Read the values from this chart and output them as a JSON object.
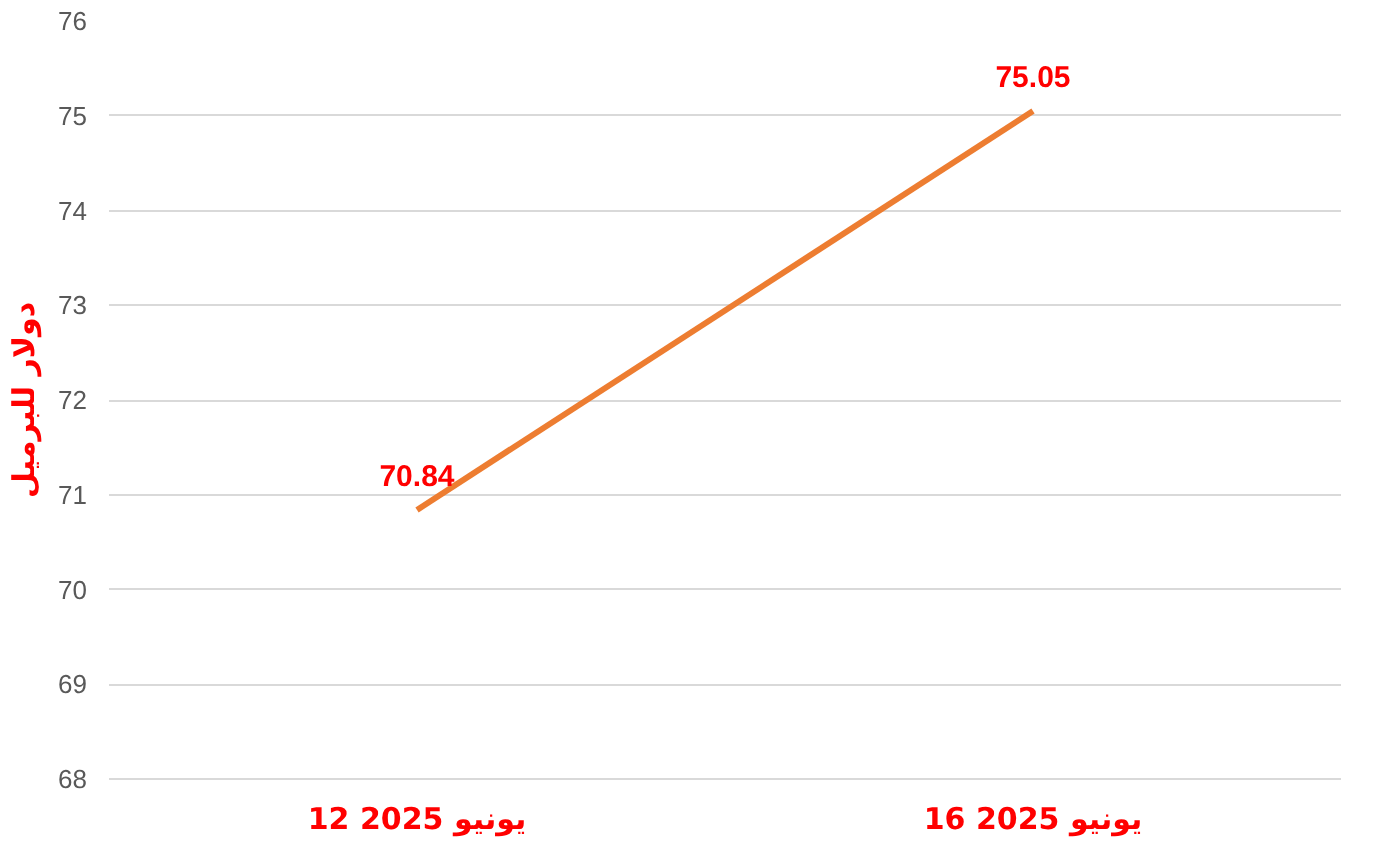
{
  "chart_data": {
    "type": "line",
    "ylabel": "دولار للبرميل",
    "categories": [
      "12 يونيو 2025",
      "16 يونيو 2025"
    ],
    "series": [
      {
        "color": "#ed7d31",
        "values": [
          70.84,
          75.05
        ]
      }
    ],
    "ylim": [
      68,
      76
    ],
    "yticks": [
      68,
      69,
      70,
      71,
      72,
      73,
      74,
      75,
      76
    ],
    "grid": "y",
    "data_labels": true,
    "marker": "none",
    "line_style": "solid"
  }
}
